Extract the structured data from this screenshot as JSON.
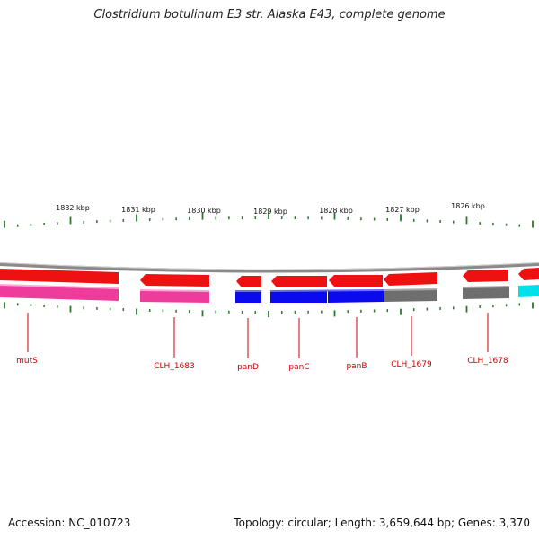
{
  "title": "Clostridium botulinum E3 str. Alaska E43, complete genome",
  "footer": {
    "accession_label": "Accession: NC_010723",
    "summary": "Topology: circular; Length: 3,659,644 bp; Genes: 3,370"
  },
  "colors": {
    "backbone": "#8a8a8a",
    "cds": "#ee1111",
    "pink": "#ee3c9c",
    "blue": "#0a0aee",
    "gray": "#6e6e6e",
    "cyan": "#00e0ea",
    "tick": "#2a7a2a",
    "label": "#cc0000"
  },
  "scale_labels": [
    "1832 kbp",
    "1831 kbp",
    "1830 kbp",
    "1829 kbp",
    "1828 kbp",
    "1827 kbp",
    "1826 kbp"
  ],
  "gene_labels": [
    "mutS",
    "CLH_1683",
    "panD",
    "panC",
    "panB",
    "CLH_1679",
    "CLH_1678"
  ]
}
